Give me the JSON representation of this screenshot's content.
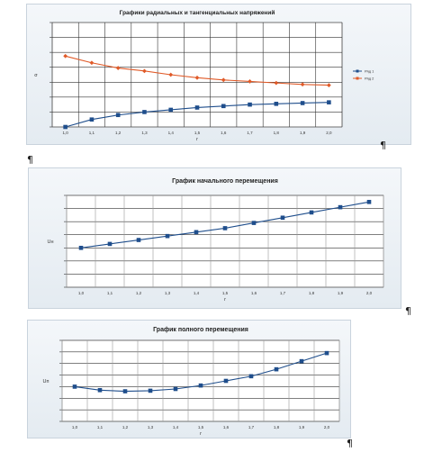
{
  "pilcrows": [
    "¶",
    "¶",
    "¶",
    "¶"
  ],
  "chart_data": [
    {
      "type": "line",
      "title": "Графики радиальных и тангенциальных напряжений",
      "xlabel": "r",
      "ylabel": "σ",
      "categories": [
        "1,0",
        "1,1",
        "1,2",
        "1,3",
        "1,4",
        "1,5",
        "1,6",
        "1,7",
        "1,8",
        "1,9",
        "2,0"
      ],
      "ylim": [
        -0.2,
        1.2
      ],
      "series": [
        {
          "name": "Ряд 1",
          "color": "#1f4e8c",
          "marker": "square",
          "values": [
            -0.2,
            -0.1,
            -0.04,
            0.0,
            0.03,
            0.06,
            0.08,
            0.1,
            0.11,
            0.12,
            0.13
          ]
        },
        {
          "name": "Ряд 2",
          "color": "#e05a28",
          "marker": "diamond",
          "values": [
            0.75,
            0.66,
            0.59,
            0.55,
            0.5,
            0.46,
            0.43,
            0.41,
            0.39,
            0.37,
            0.36
          ]
        }
      ],
      "grid": true,
      "legend": "right"
    },
    {
      "type": "line",
      "title": "График начального перемещения",
      "xlabel": "r",
      "ylabel": "Uн",
      "categories": [
        "1,0",
        "1,1",
        "1,2",
        "1,3",
        "1,4",
        "1,5",
        "1,6",
        "1,7",
        "1,8",
        "1,9",
        "2,0"
      ],
      "ylim": [
        0,
        0.7
      ],
      "series": [
        {
          "color": "#1f4e8c",
          "marker": "square",
          "values": [
            0.3,
            0.33,
            0.36,
            0.39,
            0.42,
            0.45,
            0.49,
            0.53,
            0.57,
            0.61,
            0.65
          ]
        }
      ],
      "grid": true,
      "legend": "none"
    },
    {
      "type": "line",
      "title": "График полного перемещения",
      "xlabel": "r",
      "ylabel": "Uп",
      "categories": [
        "1,0",
        "1,1",
        "1,2",
        "1,3",
        "1,4",
        "1,5",
        "1,6",
        "1,7",
        "1,8",
        "1,9",
        "2,0"
      ],
      "ylim": [
        0,
        0.7
      ],
      "series": [
        {
          "color": "#1f4e8c",
          "marker": "square",
          "values": [
            0.3,
            0.27,
            0.26,
            0.265,
            0.28,
            0.31,
            0.35,
            0.39,
            0.45,
            0.52,
            0.59
          ]
        }
      ],
      "grid": true,
      "legend": "none"
    }
  ]
}
